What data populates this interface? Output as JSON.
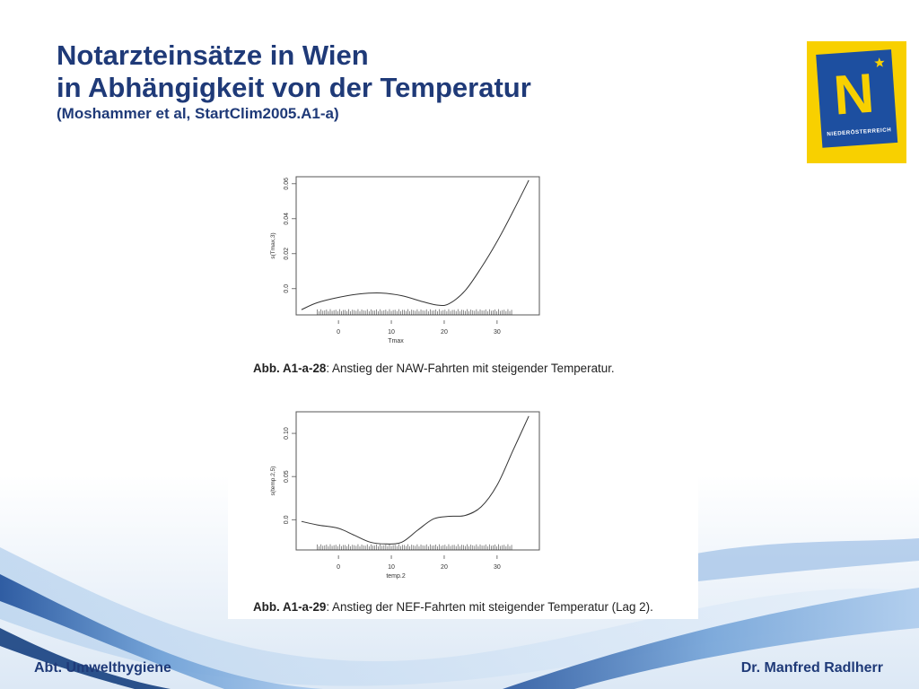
{
  "slide": {
    "title_line1": "Notarzteinsätze in Wien",
    "title_line2": "in Abhängigkeit von der Temperatur",
    "title_line3": "(Moshammer et al, StartClim2005.A1-a)"
  },
  "logo": {
    "letter": "N",
    "text": "NIEDERÖSTERREICH",
    "background_color": "#f8d000",
    "badge_color": "#1d4fa0"
  },
  "footer": {
    "left": "Abt. Umwelthygiene",
    "right": "Dr. Manfred Radlherr"
  },
  "captions": [
    {
      "label": "Abb. A1-a-28",
      "text": ": Anstieg der NAW-Fahrten mit steigender Temperatur."
    },
    {
      "label": "Abb. A1-a-29",
      "text": ": Anstieg der NEF-Fahrten mit steigender Temperatur (Lag 2)."
    }
  ],
  "chart_data": [
    {
      "type": "line",
      "xlabel": "Tmax",
      "ylabel": "s(Tmax,3)",
      "xlim": [
        -8,
        38
      ],
      "ylim": [
        -0.015,
        0.064
      ],
      "xticks": [
        0,
        10,
        20,
        30
      ],
      "yticks": [
        0.0,
        0.02,
        0.04,
        0.06
      ],
      "ytick_labels": [
        "0.0",
        "0.02",
        "0.04",
        "0.06"
      ],
      "grid": false,
      "rug": true,
      "series": [
        {
          "x": [
            -7,
            -4,
            0,
            4,
            8,
            12,
            16,
            19,
            21,
            24,
            27,
            30,
            33,
            36
          ],
          "y": [
            -0.012,
            -0.008,
            -0.005,
            -0.003,
            -0.0025,
            -0.004,
            -0.0075,
            -0.0095,
            -0.0085,
            -0.001,
            0.012,
            0.027,
            0.044,
            0.062
          ]
        }
      ]
    },
    {
      "type": "line",
      "xlabel": "temp.2",
      "ylabel": "s(temp.2,5)",
      "xlim": [
        -8,
        38
      ],
      "ylim": [
        -0.035,
        0.125
      ],
      "xticks": [
        0,
        10,
        20,
        30
      ],
      "yticks": [
        0.0,
        0.05,
        0.1
      ],
      "ytick_labels": [
        "0.0",
        "0.05",
        "0.10"
      ],
      "grid": false,
      "rug": true,
      "series": [
        {
          "x": [
            -7,
            -4,
            0,
            3,
            6,
            9,
            12,
            15,
            18,
            21,
            24,
            27,
            30,
            33,
            36
          ],
          "y": [
            -0.002,
            -0.006,
            -0.01,
            -0.018,
            -0.026,
            -0.028,
            -0.026,
            -0.012,
            0.001,
            0.004,
            0.005,
            0.015,
            0.04,
            0.08,
            0.12
          ]
        }
      ]
    }
  ]
}
